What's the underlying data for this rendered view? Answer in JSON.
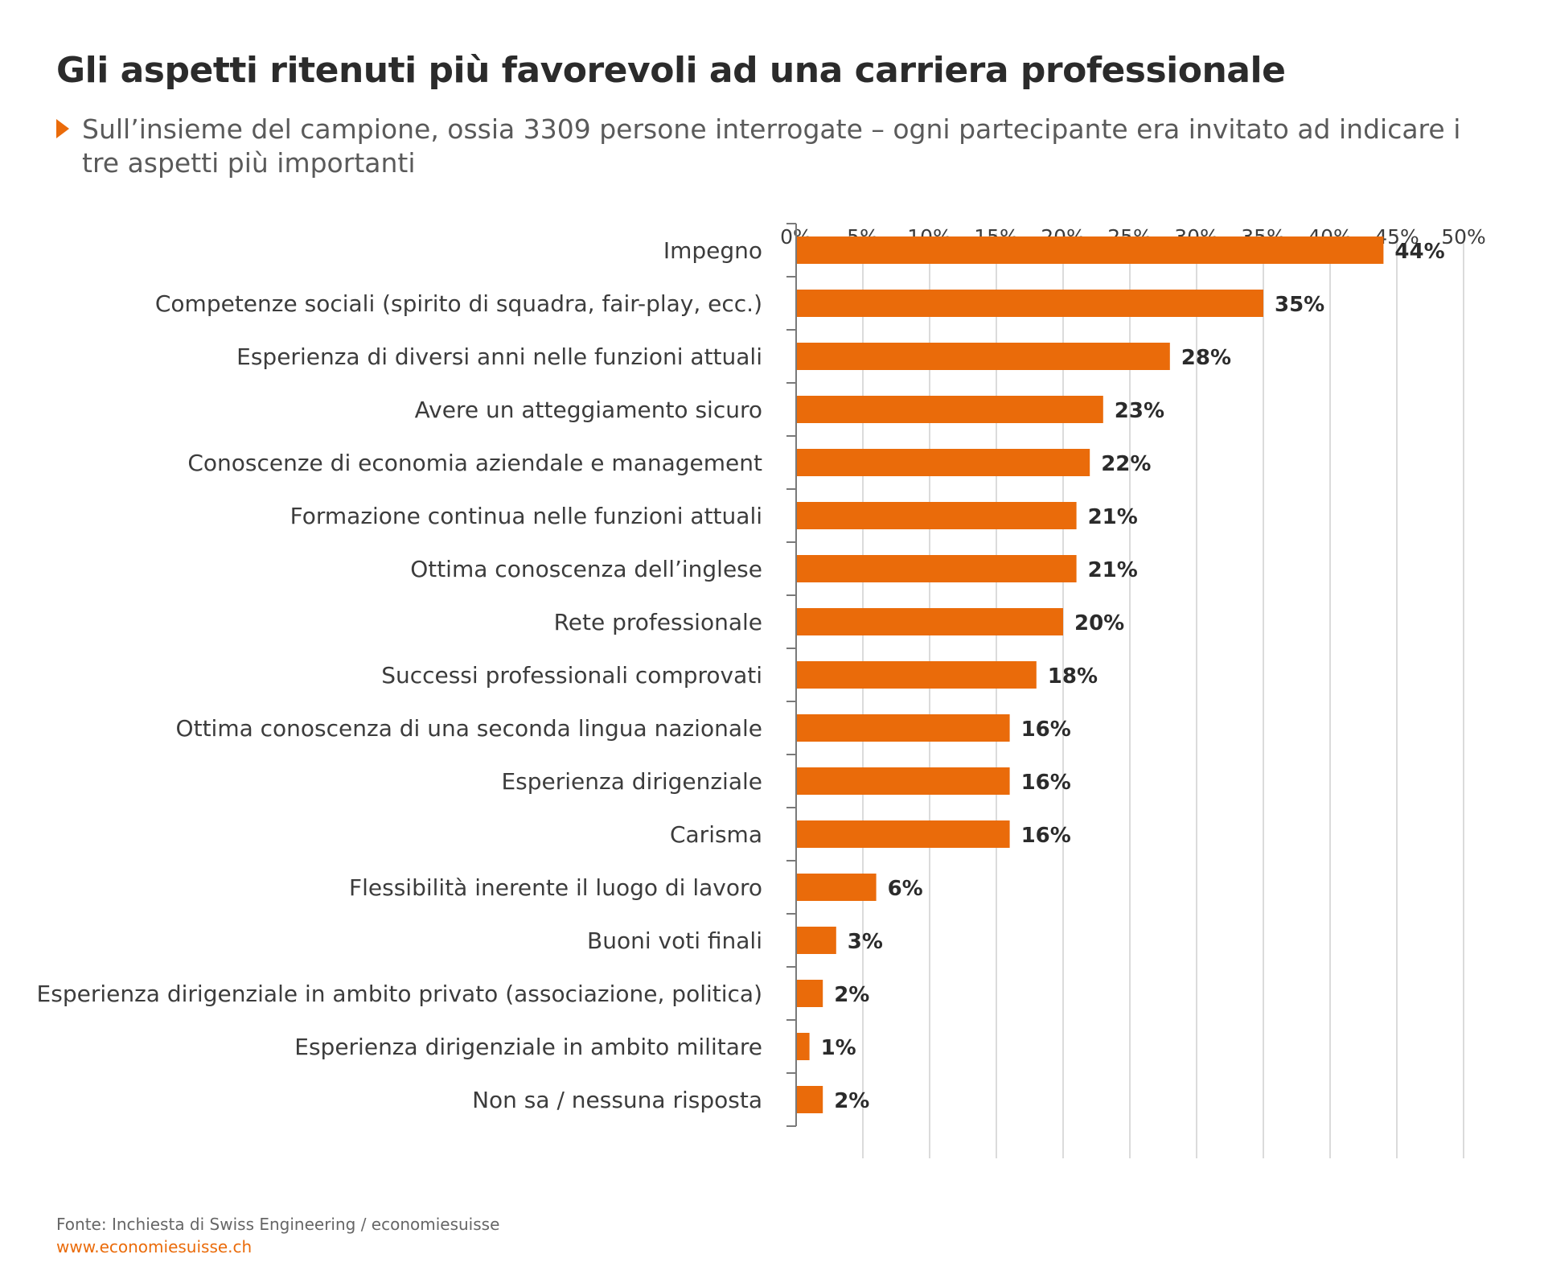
{
  "title": "Gli aspetti ritenuti più favorevoli ad una carriera professionale",
  "subtitle": "Sull’insieme del campione, ossia 3309 persone interrogate – ogni partecipante era invitato ad indicare i tre aspetti più importanti",
  "footer": {
    "source": "Fonte: Inchiesta di Swiss Engineering / economiesuisse",
    "website": "www.economiesuisse.ch"
  },
  "colors": {
    "bar": "#ea6b0a",
    "accent": "#ea6b0a",
    "grid": "#cfcfcf",
    "axis": "#7a7a7a"
  },
  "chart_data": {
    "type": "bar",
    "orientation": "horizontal",
    "xlim": [
      0,
      50
    ],
    "ticks": [
      0,
      5,
      10,
      15,
      20,
      25,
      30,
      35,
      40,
      45,
      50
    ],
    "tick_labels": [
      "0%",
      "5%",
      "10%",
      "15%",
      "20%",
      "25%",
      "30%",
      "35%",
      "40%",
      "45%",
      "50%"
    ],
    "axis_position": "top",
    "grid": true,
    "categories": [
      "Impegno",
      "Competenze sociali (spirito di squadra, fair-play, ecc.)",
      "Esperienza di diversi anni nelle funzioni attuali",
      "Avere un atteggiamento sicuro",
      "Conoscenze di economia aziendale e management",
      "Formazione continua nelle funzioni attuali",
      "Ottima conoscenza dell’inglese",
      "Rete professionale",
      "Successi professionali comprovati",
      "Ottima conoscenza di una seconda lingua nazionale",
      "Esperienza dirigenziale",
      "Carisma",
      "Flessibilità inerente il luogo di lavoro",
      "Buoni voti finali",
      "Esperienza dirigenziale in ambito privato (associazione, politica)",
      "Esperienza dirigenziale in ambito militare",
      "Non sa / nessuna risposta"
    ],
    "values": [
      44,
      35,
      28,
      23,
      22,
      21,
      21,
      20,
      18,
      16,
      16,
      16,
      6,
      3,
      2,
      1,
      2
    ],
    "value_labels": [
      "44%",
      "35%",
      "28%",
      "23%",
      "22%",
      "21%",
      "21%",
      "20%",
      "18%",
      "16%",
      "16%",
      "16%",
      "6%",
      "3%",
      "2%",
      "1%",
      "2%"
    ]
  }
}
